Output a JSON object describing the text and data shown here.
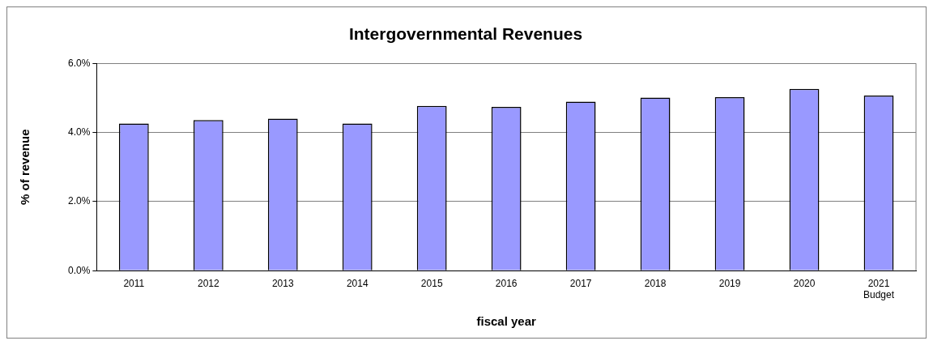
{
  "chart_data": {
    "type": "bar",
    "title": "Intergovernmental Revenues",
    "xlabel": "fiscal year",
    "ylabel": "% of revenue",
    "categories": [
      "2011",
      "2012",
      "2013",
      "2014",
      "2015",
      "2016",
      "2017",
      "2018",
      "2019",
      "2020",
      "2021\nBudget"
    ],
    "values": [
      4.26,
      4.36,
      4.4,
      4.26,
      4.77,
      4.74,
      4.89,
      5.01,
      5.02,
      5.26,
      5.07
    ],
    "color": "#9999ff",
    "ylim": [
      0,
      6
    ],
    "yticks": [
      {
        "value": 0,
        "label": "0.0%"
      },
      {
        "value": 2,
        "label": "2.0%"
      },
      {
        "value": 4,
        "label": "4.0%"
      },
      {
        "value": 6,
        "label": "6.0%"
      }
    ],
    "grid": "y"
  }
}
